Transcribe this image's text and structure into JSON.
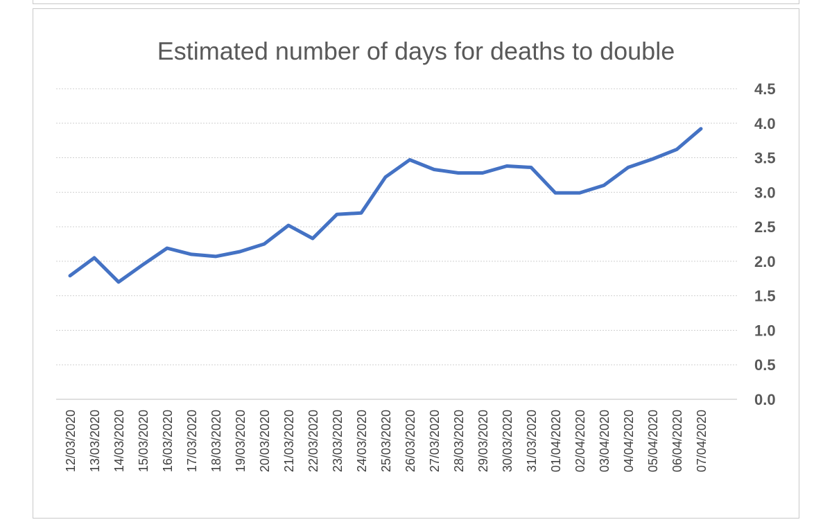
{
  "chart_data": {
    "type": "line",
    "title": "Estimated number of days for deaths to double",
    "xlabel": "",
    "ylabel": "",
    "ylim": [
      0,
      4.5
    ],
    "y_ticks": [
      "0.0",
      "0.5",
      "1.0",
      "1.5",
      "2.0",
      "2.5",
      "3.0",
      "3.5",
      "4.0",
      "4.5"
    ],
    "y_axis_position": "right",
    "grid": true,
    "legend": "none",
    "categories": [
      "12/03/2020",
      "13/03/2020",
      "14/03/2020",
      "15/03/2020",
      "16/03/2020",
      "17/03/2020",
      "18/03/2020",
      "19/03/2020",
      "20/03/2020",
      "21/03/2020",
      "22/03/2020",
      "23/03/2020",
      "24/03/2020",
      "25/03/2020",
      "26/03/2020",
      "27/03/2020",
      "28/03/2020",
      "29/03/2020",
      "30/03/2020",
      "31/03/2020",
      "01/04/2020",
      "02/04/2020",
      "03/04/2020",
      "04/04/2020",
      "05/04/2020",
      "06/04/2020",
      "07/04/2020"
    ],
    "series": [
      {
        "color": "#4472c4",
        "values": [
          1.79,
          2.05,
          1.7,
          1.95,
          2.19,
          2.1,
          2.07,
          2.14,
          2.25,
          2.52,
          2.33,
          2.68,
          2.7,
          3.22,
          3.47,
          3.33,
          3.28,
          3.28,
          3.38,
          3.36,
          2.99,
          2.99,
          3.1,
          3.36,
          3.48,
          3.62,
          3.92
        ]
      }
    ]
  }
}
